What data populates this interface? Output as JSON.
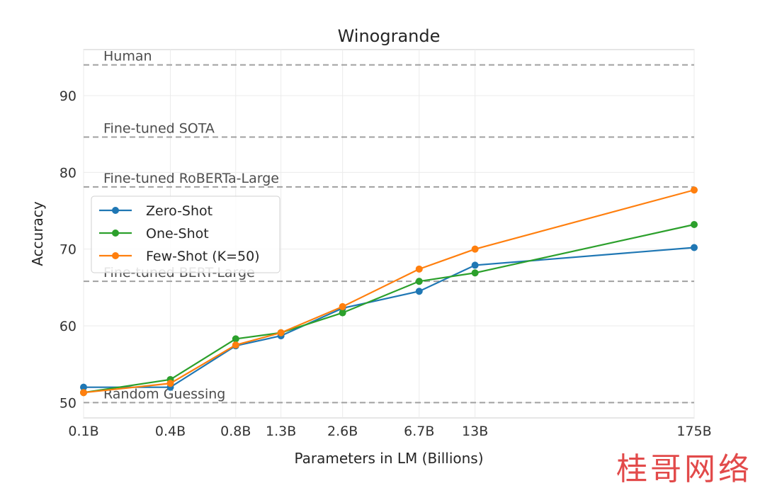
{
  "chart_data": {
    "type": "line",
    "title": "Winogrande",
    "xlabel": "Parameters in LM (Billions)",
    "ylabel": "Accuracy",
    "categories": [
      "0.1B",
      "0.4B",
      "0.8B",
      "1.3B",
      "2.6B",
      "6.7B",
      "13B",
      "175B"
    ],
    "x_values": [
      0.125,
      0.35,
      0.76,
      1.3,
      2.7,
      6.7,
      13,
      175
    ],
    "x_scale": "log",
    "ylim": [
      48,
      96
    ],
    "yticks": [
      50,
      60,
      70,
      80,
      90
    ],
    "grid": true,
    "legend_position": "left",
    "series": [
      {
        "name": "Zero-Shot",
        "color": "#1f77b4",
        "values": [
          52.0,
          52.0,
          57.4,
          58.7,
          62.3,
          64.5,
          67.9,
          70.2
        ]
      },
      {
        "name": "One-Shot",
        "color": "#2ca02c",
        "values": [
          51.3,
          53.0,
          58.3,
          59.1,
          61.7,
          65.8,
          66.9,
          73.2
        ]
      },
      {
        "name": "Few-Shot (K=50)",
        "color": "#ff7f0e",
        "values": [
          51.3,
          52.5,
          57.5,
          59.1,
          62.5,
          67.4,
          70.0,
          77.7
        ]
      }
    ],
    "reference_lines": [
      {
        "label": "Human",
        "value": 94
      },
      {
        "label": "Fine-tuned SOTA",
        "value": 84.6
      },
      {
        "label": "Fine-tuned RoBERTa-Large",
        "value": 78.1
      },
      {
        "label": "Fine-tuned BERT-Large",
        "value": 65.8
      },
      {
        "label": "Random Guessing",
        "value": 50
      }
    ]
  },
  "watermark": "桂哥网络"
}
